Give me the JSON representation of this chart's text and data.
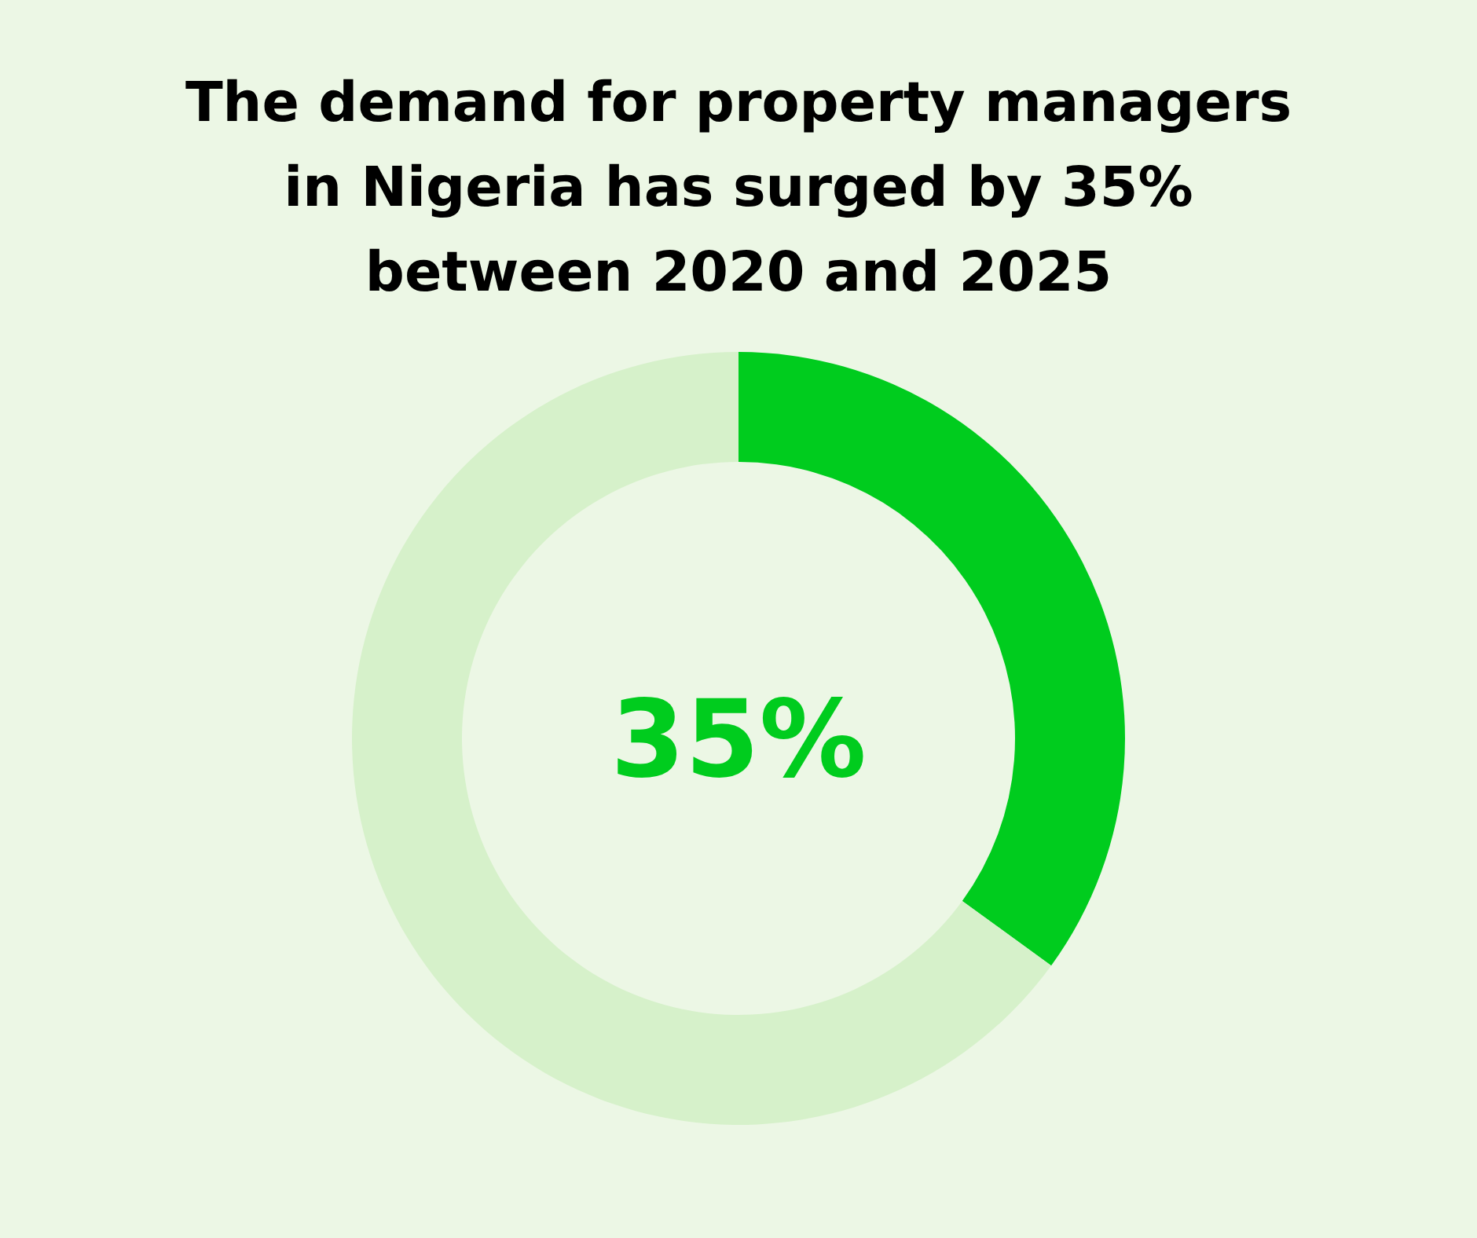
{
  "chart_data": {
    "type": "donut",
    "title": "The demand for property managers in Nigeria has surged by 35% between 2020 and 2025",
    "categories": [
      null,
      null
    ],
    "values": [
      35,
      65
    ],
    "colors": [
      "#00cc1e",
      "#d6f1ca"
    ],
    "annotations": [
      "35%"
    ]
  }
}
